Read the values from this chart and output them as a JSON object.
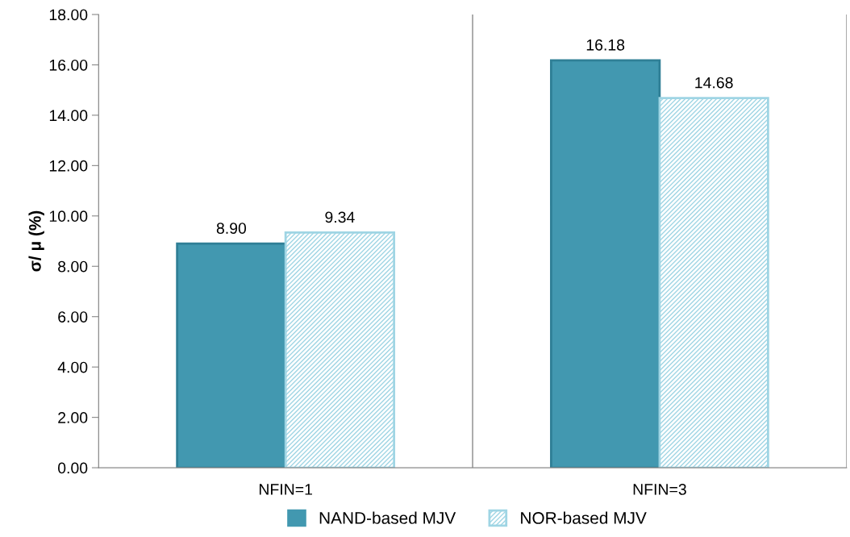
{
  "chart_data": {
    "type": "bar",
    "ylabel": "σ/ μ (%)",
    "categories": [
      "NFIN=1",
      "NFIN=3"
    ],
    "series": [
      {
        "name": "NAND-based MJV",
        "color": "#4298b0",
        "values": [
          8.9,
          16.18
        ],
        "value_labels": [
          "8.90",
          "16.18"
        ]
      },
      {
        "name": "NOR-based MJV",
        "color": "#9fd5e4",
        "values": [
          9.34,
          14.68
        ],
        "value_labels": [
          "9.34",
          "14.68"
        ]
      }
    ],
    "ylim": [
      0,
      18
    ],
    "yticks": [
      {
        "value": 0,
        "label": "0.00"
      },
      {
        "value": 2,
        "label": "2.00"
      },
      {
        "value": 4,
        "label": "4.00"
      },
      {
        "value": 6,
        "label": "6.00"
      },
      {
        "value": 8,
        "label": "8.00"
      },
      {
        "value": 10,
        "label": "10.00"
      },
      {
        "value": 12,
        "label": "12.00"
      },
      {
        "value": 14,
        "label": "14.00"
      },
      {
        "value": 16,
        "label": "16.00"
      },
      {
        "value": 18,
        "label": "18.00"
      }
    ],
    "grid": "x",
    "legend": "bottom"
  }
}
